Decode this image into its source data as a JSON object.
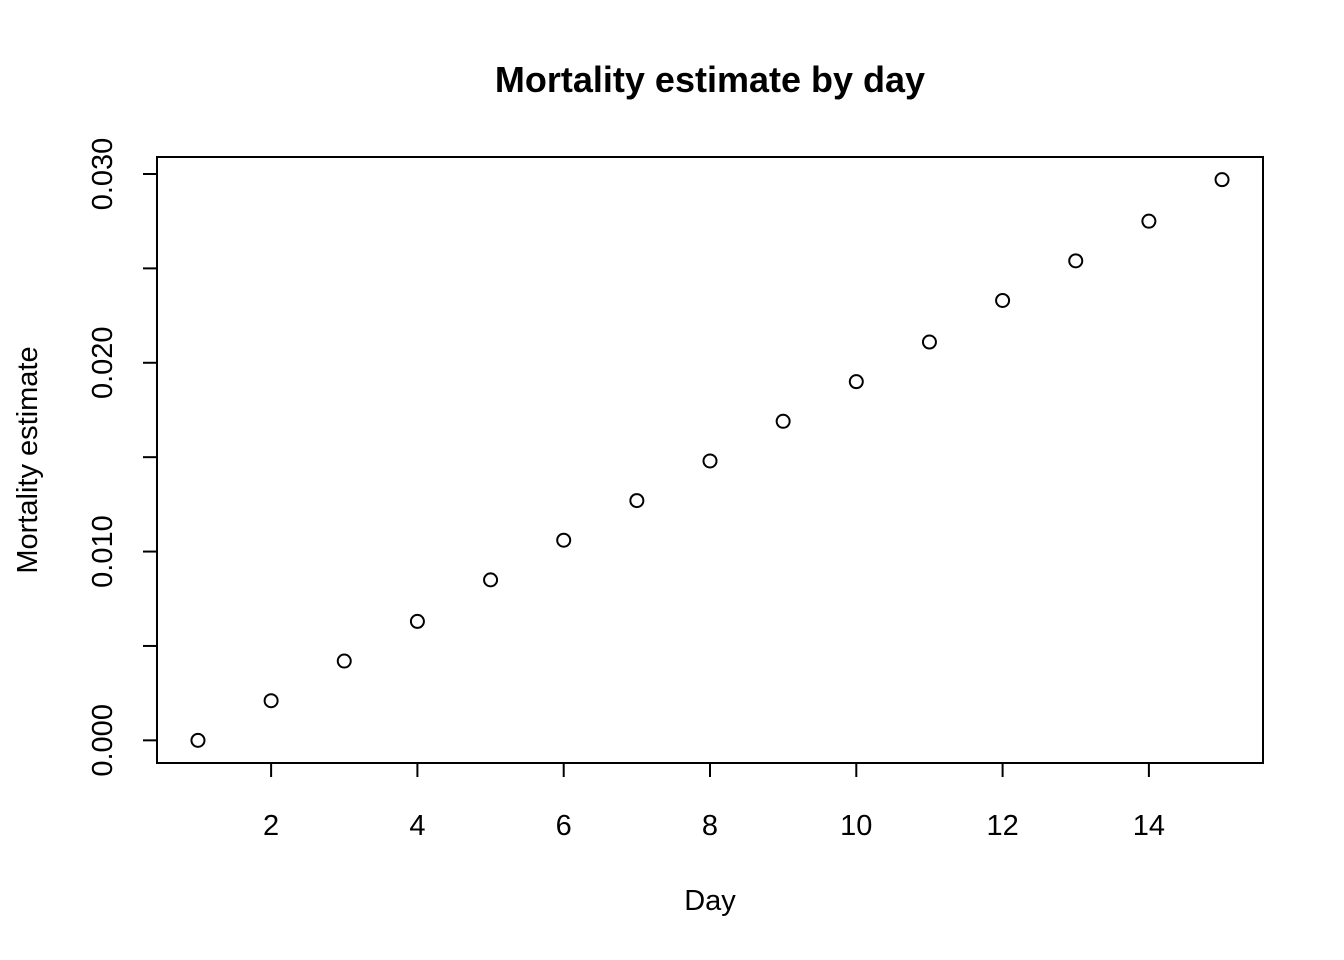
{
  "chart_data": {
    "type": "scatter",
    "title": "Mortality estimate by day",
    "xlabel": "Day",
    "ylabel": "Mortality estimate",
    "x": [
      1,
      2,
      3,
      4,
      5,
      6,
      7,
      8,
      9,
      10,
      11,
      12,
      13,
      14,
      15
    ],
    "y": [
      0.0,
      0.0021,
      0.0042,
      0.0063,
      0.0085,
      0.0106,
      0.0127,
      0.0148,
      0.0169,
      0.019,
      0.0211,
      0.0233,
      0.0254,
      0.0275,
      0.0297
    ],
    "xlim": [
      0.44,
      15.56
    ],
    "ylim": [
      -0.0012,
      0.0309
    ],
    "x_ticks": [
      2,
      4,
      6,
      8,
      10,
      12,
      14
    ],
    "x_tick_labels": [
      "2",
      "4",
      "6",
      "8",
      "10",
      "12",
      "14"
    ],
    "y_ticks": [
      0.0,
      0.005,
      0.01,
      0.015,
      0.02,
      0.025,
      0.03
    ],
    "y_tick_labels": [
      "0.000",
      "",
      "0.010",
      "",
      "0.020",
      "",
      "0.030"
    ],
    "grid": false,
    "legend": "none",
    "marker": "open-circle",
    "colors": {
      "marker": "#000000",
      "axes": "#000000",
      "background": "#ffffff"
    }
  }
}
